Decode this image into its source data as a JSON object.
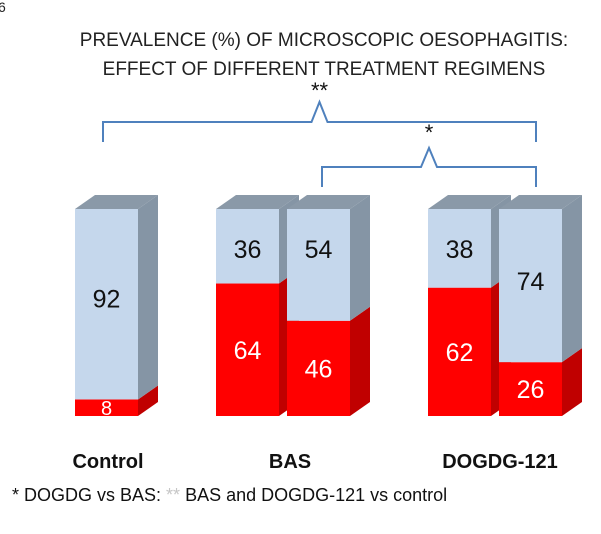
{
  "chart_data": {
    "type": "bar",
    "stacked": true,
    "three_d": true,
    "title_lines": [
      "PREVALENCE  (%) OF MICROSCOPIC  OESOPHAGITIS:",
      "EFFECT OF  DIFFERENT TREATMENT REGIMENS"
    ],
    "corner_mark": "6",
    "groups": [
      {
        "label": "Control",
        "bars": [
          {
            "red": 8,
            "blue": 92
          }
        ]
      },
      {
        "label": "BAS",
        "bars": [
          {
            "red": 64,
            "blue": 36
          },
          {
            "red": 46,
            "blue": 54
          }
        ]
      },
      {
        "label": "DOGDG-121",
        "bars": [
          {
            "red": 62,
            "blue": 38
          },
          {
            "red": 26,
            "blue": 74
          }
        ]
      }
    ],
    "brackets": [
      {
        "symbol": "**"
      },
      {
        "symbol": "*"
      }
    ],
    "footnote": {
      "star1": "*",
      "text1": "  DOGDG vs BAS:  ",
      "star2": "**",
      "text2": " BAS and DOGDG-121  vs control"
    },
    "colors": {
      "red_front": "#ff0000",
      "red_side": "#c00000",
      "blue_front": "#c5d7ec",
      "blue_side": "#8595a5",
      "blue_top": "#8a99a8",
      "bracket": "#4f81bd",
      "star_footnote": "#c6c6c6"
    }
  }
}
